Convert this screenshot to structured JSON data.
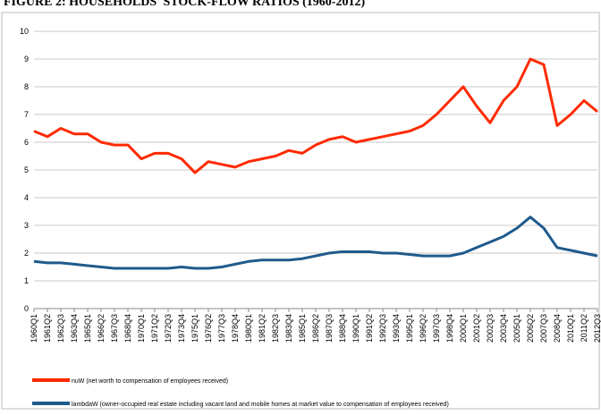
{
  "chart_data": {
    "type": "line",
    "title": "FIGURE 2: HOUSEHOLDS' STOCK-FLOW RATIOS (1960-2012)",
    "categories": [
      "1960Q1",
      "1961Q2",
      "1962Q3",
      "1963Q4",
      "1965Q1",
      "1966Q2",
      "1967Q3",
      "1968Q4",
      "1970Q1",
      "1971Q2",
      "1972Q3",
      "1973Q4",
      "1975Q1",
      "1976Q2",
      "1977Q3",
      "1978Q4",
      "1980Q1",
      "1981Q2",
      "1982Q3",
      "1983Q4",
      "1985Q1",
      "1986Q2",
      "1987Q3",
      "1988Q4",
      "1990Q1",
      "1991Q2",
      "1992Q3",
      "1993Q4",
      "1995Q1",
      "1996Q2",
      "1997Q3",
      "1998Q4",
      "2000Q1",
      "2001Q2",
      "2002Q3",
      "2003Q4",
      "2005Q1",
      "2006Q2",
      "2007Q3",
      "2008Q4",
      "2010Q1",
      "2011Q2",
      "2012Q3"
    ],
    "series": [
      {
        "name": "nuW (net worth to compensation of employees received)",
        "color": "#ff2a00",
        "values": [
          6.4,
          6.2,
          6.5,
          6.3,
          6.3,
          6.0,
          5.9,
          5.9,
          5.4,
          5.6,
          5.6,
          5.4,
          4.9,
          5.3,
          5.2,
          5.1,
          5.3,
          5.4,
          5.5,
          5.7,
          5.6,
          5.9,
          6.1,
          6.2,
          6.0,
          6.1,
          6.2,
          6.3,
          6.4,
          6.6,
          7.0,
          7.5,
          8.0,
          7.3,
          6.7,
          7.5,
          8.0,
          9.0,
          8.8,
          6.6,
          7.0,
          7.5,
          7.1
        ]
      },
      {
        "name": "lambdaW (owner-occupied real estate including vacant land and mobile homes at market value to compensation of employees received)",
        "color": "#1f5a8c",
        "values": [
          1.7,
          1.65,
          1.65,
          1.6,
          1.55,
          1.5,
          1.45,
          1.45,
          1.45,
          1.45,
          1.45,
          1.5,
          1.45,
          1.45,
          1.5,
          1.6,
          1.7,
          1.75,
          1.75,
          1.75,
          1.8,
          1.9,
          2.0,
          2.05,
          2.05,
          2.05,
          2.0,
          2.0,
          1.95,
          1.9,
          1.9,
          1.9,
          2.0,
          2.2,
          2.4,
          2.6,
          2.9,
          3.3,
          2.9,
          2.2,
          2.1,
          2.0,
          1.9
        ]
      }
    ],
    "ylim": [
      0,
      10
    ],
    "yticks": [
      0,
      1,
      2,
      3,
      4,
      5,
      6,
      7,
      8,
      9,
      10
    ],
    "grid": true,
    "legend": "bottom"
  }
}
